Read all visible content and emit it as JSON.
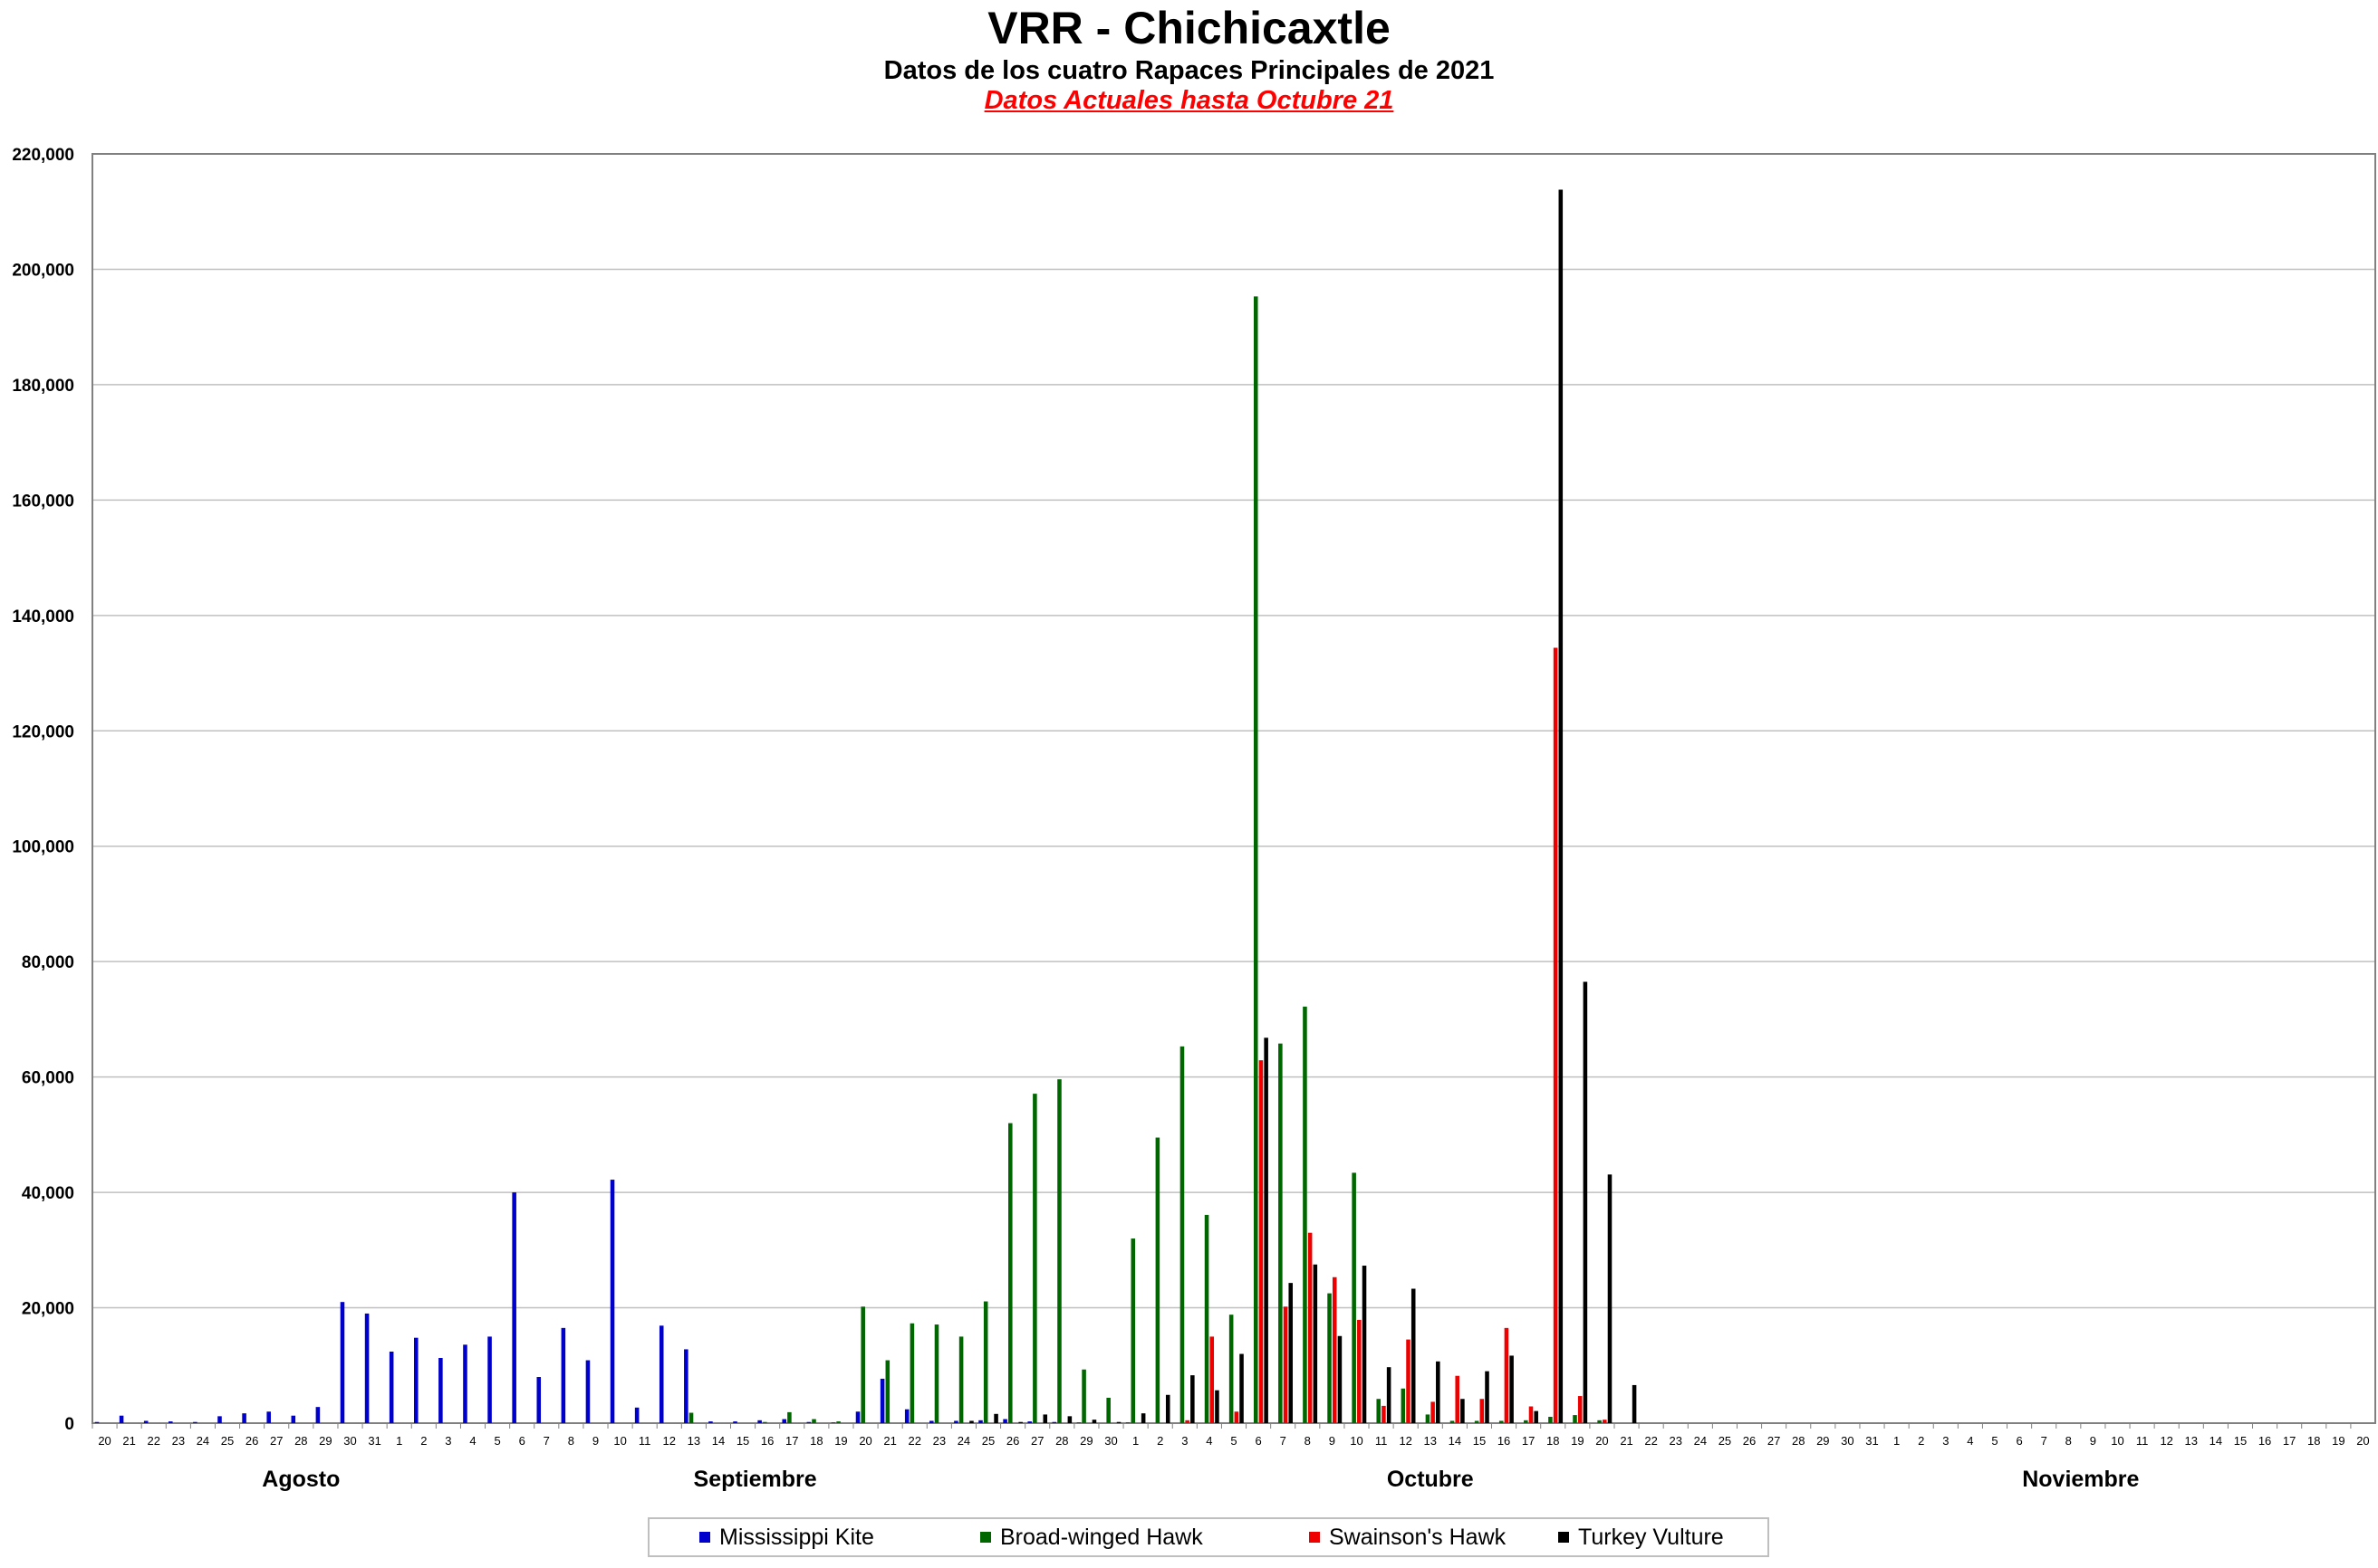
{
  "header": {
    "title": "VRR - Chichicaxtle",
    "subtitle": "Datos de los cuatro Rapaces Principales de 2021",
    "note": "Datos Actuales hasta Octubre 21"
  },
  "colors": {
    "mississippi_kite": "#0000cc",
    "broad_winged_hawk": "#006600",
    "swainsons_hawk": "#ee0000",
    "turkey_vulture": "#000000",
    "note_text": "#ff0000",
    "gridline": "#c0c0c0"
  },
  "chart_data": {
    "type": "bar",
    "title": "VRR - Chichicaxtle",
    "xlabel": "",
    "ylabel": "",
    "ylim": [
      0,
      220000
    ],
    "yticks": [
      0,
      20000,
      40000,
      60000,
      80000,
      100000,
      120000,
      140000,
      160000,
      180000,
      200000,
      220000
    ],
    "ytick_labels": [
      "0",
      "20,000",
      "40,000",
      "60,000",
      "80,000",
      "100,000",
      "120,000",
      "140,000",
      "160,000",
      "180,000",
      "200,000",
      "220,000"
    ],
    "grid": true,
    "legend_position": "bottom",
    "month_labels": [
      {
        "label": "Agosto",
        "center_index": 8
      },
      {
        "label": "Septiembre",
        "center_index": 26.5
      },
      {
        "label": "Octubre",
        "center_index": 54
      },
      {
        "label": "Noviembre",
        "center_index": 80.5
      }
    ],
    "categories": [
      "20",
      "21",
      "22",
      "23",
      "24",
      "25",
      "26",
      "27",
      "28",
      "29",
      "30",
      "31",
      "1",
      "2",
      "3",
      "4",
      "5",
      "6",
      "7",
      "8",
      "9",
      "10",
      "11",
      "12",
      "13",
      "14",
      "15",
      "16",
      "17",
      "18",
      "19",
      "20",
      "21",
      "22",
      "23",
      "24",
      "25",
      "26",
      "27",
      "28",
      "29",
      "30",
      "1",
      "2",
      "3",
      "4",
      "5",
      "6",
      "7",
      "8",
      "9",
      "10",
      "11",
      "12",
      "13",
      "14",
      "15",
      "16",
      "17",
      "18",
      "19",
      "20",
      "21",
      "22",
      "23",
      "24",
      "25",
      "26",
      "27",
      "28",
      "29",
      "30",
      "31",
      "1",
      "2",
      "3",
      "4",
      "5",
      "6",
      "7",
      "8",
      "9",
      "10",
      "11",
      "12",
      "13",
      "14",
      "15",
      "16",
      "17",
      "18",
      "19",
      "20"
    ],
    "series": [
      {
        "name": "Mississippi Kite",
        "color": "#0000cc",
        "values": [
          200,
          1300,
          400,
          300,
          200,
          1200,
          1700,
          2000,
          1300,
          2800,
          21000,
          19000,
          12400,
          14800,
          11300,
          13600,
          15000,
          40000,
          8000,
          16500,
          10900,
          42200,
          2700,
          16900,
          12800,
          300,
          300,
          500,
          700,
          200,
          100,
          2000,
          7700,
          2400,
          400,
          400,
          500,
          700,
          300,
          200,
          100,
          0,
          100,
          0,
          0,
          0,
          0,
          0,
          0,
          0,
          0,
          0,
          0,
          0,
          0,
          0,
          0,
          0,
          0,
          0,
          0,
          0,
          0,
          0,
          0,
          0,
          0,
          0,
          0,
          0,
          0,
          0,
          0,
          0,
          0,
          0,
          0,
          0,
          0,
          0,
          0,
          0,
          0,
          0,
          0,
          0,
          0,
          0,
          0,
          0,
          0,
          0,
          0
        ]
      },
      {
        "name": "Broad-winged Hawk",
        "color": "#006600",
        "values": [
          0,
          0,
          0,
          0,
          0,
          0,
          0,
          0,
          0,
          0,
          0,
          0,
          0,
          0,
          0,
          0,
          0,
          0,
          0,
          0,
          0,
          0,
          0,
          0,
          1800,
          0,
          0,
          200,
          1900,
          700,
          300,
          20200,
          10900,
          17300,
          17100,
          15000,
          21100,
          52000,
          57100,
          59600,
          9300,
          4400,
          32000,
          49500,
          65300,
          36100,
          18800,
          195300,
          65800,
          72200,
          22500,
          43400,
          4200,
          6000,
          1500,
          400,
          400,
          400,
          500,
          1100,
          1400,
          500,
          0,
          0,
          0,
          0,
          0,
          0,
          0,
          0,
          0,
          0,
          0,
          0,
          0,
          0,
          0,
          0,
          0,
          0,
          0,
          0,
          0,
          0,
          0,
          0,
          0,
          0,
          0,
          0,
          0,
          0,
          0
        ]
      },
      {
        "name": "Swainson's Hawk",
        "color": "#ee0000",
        "values": [
          0,
          0,
          0,
          0,
          0,
          0,
          0,
          0,
          0,
          0,
          0,
          0,
          0,
          0,
          0,
          0,
          0,
          0,
          0,
          0,
          0,
          0,
          0,
          0,
          0,
          0,
          0,
          0,
          0,
          0,
          0,
          0,
          0,
          0,
          0,
          0,
          0,
          0,
          0,
          0,
          0,
          0,
          0,
          0,
          500,
          15000,
          2000,
          62900,
          20200,
          33000,
          25300,
          17900,
          3000,
          14500,
          3700,
          8200,
          4200,
          16500,
          2900,
          134400,
          4700,
          600,
          0,
          0,
          0,
          0,
          0,
          0,
          0,
          0,
          0,
          0,
          0,
          0,
          0,
          0,
          0,
          0,
          0,
          0,
          0,
          0,
          0,
          0,
          0,
          0,
          0,
          0,
          0,
          0,
          0,
          0,
          0
        ]
      },
      {
        "name": "Turkey Vulture",
        "color": "#000000",
        "values": [
          0,
          0,
          0,
          0,
          0,
          0,
          0,
          0,
          0,
          0,
          0,
          0,
          0,
          0,
          0,
          0,
          0,
          0,
          0,
          0,
          0,
          0,
          0,
          0,
          0,
          0,
          0,
          0,
          0,
          0,
          0,
          0,
          0,
          0,
          0,
          400,
          1600,
          200,
          1500,
          1200,
          600,
          200,
          1700,
          4900,
          8300,
          5700,
          12000,
          66800,
          24300,
          27500,
          15100,
          27300,
          9700,
          23300,
          10700,
          4200,
          9000,
          11700,
          2100,
          213800,
          76500,
          43100,
          6600,
          0,
          0,
          0,
          0,
          0,
          0,
          0,
          0,
          0,
          0,
          0,
          0,
          0,
          0,
          0,
          0,
          0,
          0,
          0,
          0,
          0,
          0,
          0,
          0,
          0,
          0,
          0,
          0,
          0,
          0
        ]
      }
    ]
  }
}
